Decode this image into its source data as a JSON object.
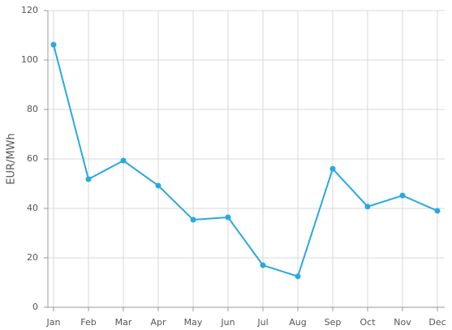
{
  "chart_data": {
    "type": "line",
    "y_label": "EUR/MWh",
    "categories": [
      "Jan",
      "Feb",
      "Mar",
      "Apr",
      "May",
      "Jun",
      "Jul",
      "Aug",
      "Sep",
      "Oct",
      "Nov",
      "Dec"
    ],
    "series": [
      {
        "color": "#29a9df",
        "values": [
          106.2,
          51.8,
          59.3,
          49.2,
          35.4,
          36.4,
          17,
          12.5,
          56,
          40.7,
          45.2,
          39
        ]
      }
    ],
    "ylim": [
      0,
      120
    ],
    "yticks": [
      0,
      20,
      40,
      60,
      80,
      100,
      120
    ],
    "grid": true
  }
}
